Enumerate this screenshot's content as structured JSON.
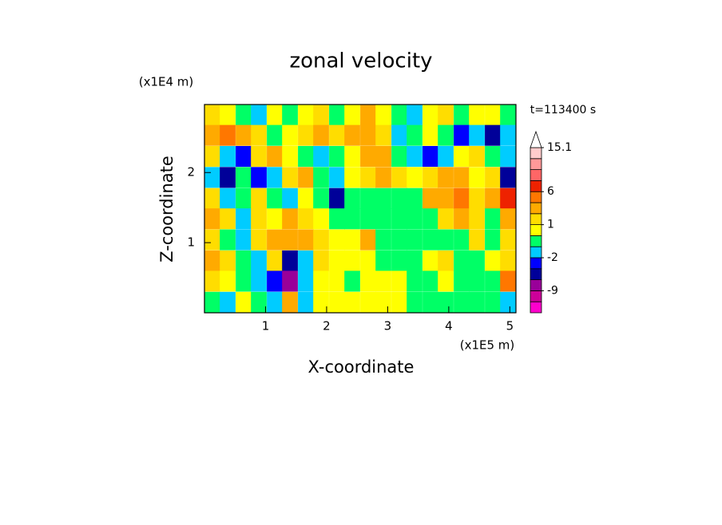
{
  "chart_data": {
    "type": "contourf",
    "title": "zonal velocity",
    "x_label": "X-coordinate",
    "y_label": "Z-coordinate",
    "x_unit": "(x1E5 m)",
    "y_unit": "(x1E4 m)",
    "annotation": "t=113400 s",
    "xlim": [
      0,
      5.1
    ],
    "ylim": [
      0,
      2.97
    ],
    "xticks": [
      1,
      2,
      3,
      4,
      5
    ],
    "yticks": [
      1,
      2
    ],
    "x": [
      0.13,
      0.38,
      0.64,
      0.89,
      1.15,
      1.4,
      1.66,
      1.91,
      2.17,
      2.42,
      2.68,
      2.93,
      3.19,
      3.44,
      3.7,
      3.95,
      4.21,
      4.46,
      4.72,
      4.97
    ],
    "y": [
      2.82,
      2.53,
      2.23,
      1.93,
      1.63,
      1.34,
      1.04,
      0.74,
      0.45,
      0.15
    ],
    "z": [
      [
        1,
        0.5,
        -1,
        -2,
        0.5,
        -1,
        0.5,
        1,
        -1,
        0.5,
        2,
        0.5,
        -1,
        -2,
        0.5,
        1,
        -1,
        0.5,
        0.5,
        -1
      ],
      [
        3,
        4,
        2,
        1,
        -1,
        0.5,
        1,
        2,
        1,
        3,
        2,
        1,
        -2,
        -1,
        0.5,
        -1,
        -4,
        -2,
        -6,
        -2
      ],
      [
        1,
        -2,
        -4,
        1,
        2,
        0.5,
        -1,
        -2,
        -1,
        0.5,
        2,
        3,
        -1,
        -2,
        -4,
        -2,
        0.5,
        1,
        -1,
        -2
      ],
      [
        -2,
        -6,
        -1,
        -4,
        -2,
        1,
        2,
        -1,
        -2,
        0.5,
        1,
        2,
        1,
        0.5,
        1,
        3,
        2,
        0.5,
        1,
        -6
      ],
      [
        1,
        -2,
        -1,
        1,
        -1,
        -2,
        0.5,
        -1,
        -6,
        -1,
        -1,
        -1,
        -0.5,
        -0.5,
        2,
        3,
        4,
        1,
        2,
        6
      ],
      [
        2,
        1,
        -2,
        1,
        0.5,
        2,
        1,
        0.5,
        -0.5,
        -0.5,
        -0.5,
        -0.5,
        -0.5,
        -0.5,
        -0.5,
        1,
        2,
        1,
        -1,
        2
      ],
      [
        1,
        -1,
        -2,
        1,
        2,
        3,
        2,
        1,
        0.5,
        0.5,
        2,
        -0.5,
        -0.5,
        -0.5,
        -0.5,
        -0.5,
        -0.5,
        1,
        -1,
        1
      ],
      [
        2,
        1,
        -1,
        -2,
        1,
        -6,
        -2,
        1,
        0.5,
        0.5,
        0.5,
        -0.5,
        -0.5,
        -0.5,
        0.5,
        1,
        -0.5,
        -0.5,
        0.5,
        1
      ],
      [
        1,
        0.5,
        -1,
        -2,
        -4,
        -9,
        -2,
        0.5,
        0.5,
        -0.5,
        0.5,
        0.5,
        0.5,
        -0.5,
        -0.5,
        0.5,
        -0.5,
        -0.5,
        -0.5,
        4
      ],
      [
        -1,
        -2,
        0.5,
        -1,
        -2,
        3,
        -2,
        0.5,
        0.5,
        0.5,
        0.5,
        0.5,
        0.5,
        -0.5,
        -0.5,
        -0.5,
        -0.5,
        -0.5,
        -1,
        -2
      ]
    ],
    "levels": [
      -15,
      -12,
      -9,
      -6,
      -4,
      -2,
      -1,
      0,
      1,
      2,
      4,
      6,
      8,
      10,
      12,
      15.1
    ],
    "colors": [
      "#ff00cc",
      "#cc0099",
      "#990099",
      "#000099",
      "#0000ff",
      "#00ccff",
      "#00ff66",
      "#ffff00",
      "#ffdd00",
      "#ffaa00",
      "#ff7700",
      "#ee2200",
      "#ff6666",
      "#ff9999",
      "#ffcccc"
    ],
    "over_color": "#ffffff",
    "colorbar_ticks": [
      -9,
      -2,
      1,
      6,
      15.1
    ]
  }
}
